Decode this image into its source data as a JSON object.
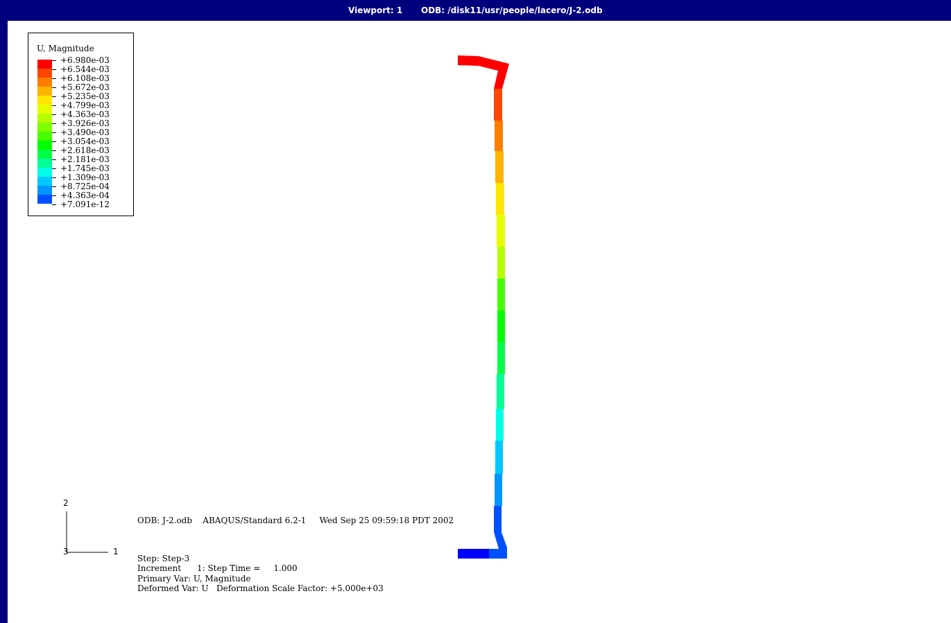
{
  "title_bar": {
    "viewport": "Viewport: 1",
    "odb_path": "ODB: /disk11/usr/people/lacero/J-2.odb"
  },
  "legend": {
    "title": "U, Magnitude",
    "entries": [
      {
        "label": "+6.980e-03",
        "color": "#ff0000"
      },
      {
        "label": "+6.544e-03",
        "color": "#ff4600"
      },
      {
        "label": "+6.108e-03",
        "color": "#ff7d00"
      },
      {
        "label": "+5.672e-03",
        "color": "#ffb400"
      },
      {
        "label": "+5.235e-03",
        "color": "#ffe600"
      },
      {
        "label": "+4.799e-03",
        "color": "#e6ff00"
      },
      {
        "label": "+4.363e-03",
        "color": "#b4ff00"
      },
      {
        "label": "+3.926e-03",
        "color": "#7dff00"
      },
      {
        "label": "+3.490e-03",
        "color": "#46ff00"
      },
      {
        "label": "+3.054e-03",
        "color": "#00ff00"
      },
      {
        "label": "+2.618e-03",
        "color": "#00ff46"
      },
      {
        "label": "+2.181e-03",
        "color": "#00ff96"
      },
      {
        "label": "+1.745e-03",
        "color": "#00ffe6"
      },
      {
        "label": "+1.309e-03",
        "color": "#00c8ff"
      },
      {
        "label": "+8.725e-04",
        "color": "#0096ff"
      },
      {
        "label": "+4.363e-04",
        "color": "#0050ff"
      },
      {
        "label": "+7.091e-12",
        "color": "#0000ff"
      }
    ]
  },
  "info": {
    "odb_line": "ODB: J-2.odb    ABAQUS/Standard 6.2-1     Wed Sep 25 09:59:18 PDT 2002",
    "step_line": "Step: Step-3",
    "increment_line": "Increment      1: Step Time =     1.000",
    "primary_var_line": "Primary Var: U, Magnitude",
    "deformed_var_line": "Deformed Var: U   Deformation Scale Factor: +5.000e+03"
  },
  "triad": {
    "axis_1": "1",
    "axis_2": "2",
    "axis_3": "3"
  },
  "colors": {
    "frame": "#00007d",
    "background": "#ffffff"
  }
}
